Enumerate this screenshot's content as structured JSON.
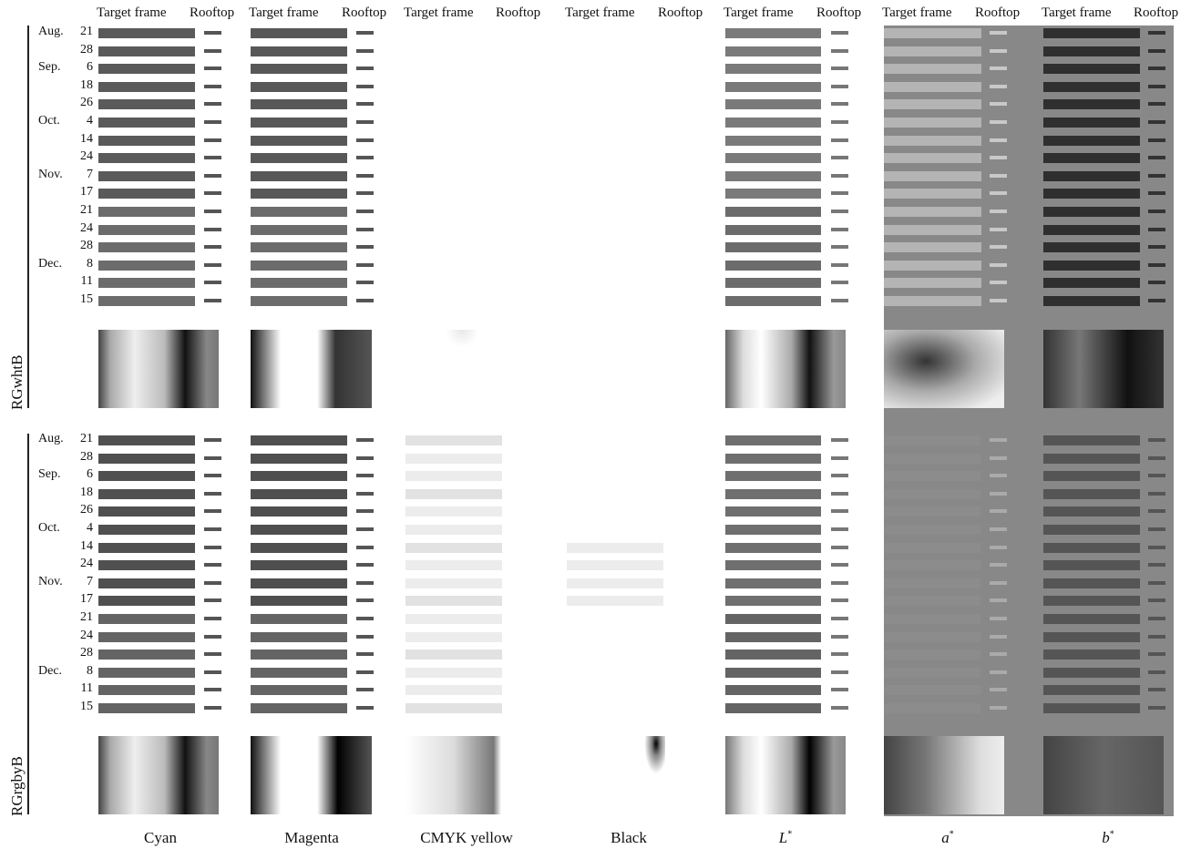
{
  "column_headers": {
    "target_frame": "Target frame",
    "rooftop": "Rooftop"
  },
  "row_labels": [
    "RGwhtB",
    "RGrgbyB"
  ],
  "months": [
    {
      "label": "Aug.",
      "row_index": 0
    },
    {
      "label": "Sep.",
      "row_index": 2
    },
    {
      "label": "Oct.",
      "row_index": 5
    },
    {
      "label": "Nov.",
      "row_index": 8
    },
    {
      "label": "Dec.",
      "row_index": 13
    }
  ],
  "dates": [
    "21",
    "28",
    "6",
    "18",
    "26",
    "4",
    "14",
    "24",
    "7",
    "17",
    "21",
    "24",
    "28",
    "8",
    "11",
    "15"
  ],
  "channels": [
    {
      "name": "Cyan",
      "italic": false,
      "sup": ""
    },
    {
      "name": "Magenta",
      "italic": false,
      "sup": ""
    },
    {
      "name": "CMYK yellow",
      "italic": false,
      "sup": ""
    },
    {
      "name": "Black",
      "italic": false,
      "sup": ""
    },
    {
      "name": "L",
      "italic": true,
      "sup": "*"
    },
    {
      "name": "a",
      "italic": true,
      "sup": "*"
    },
    {
      "name": "b",
      "italic": true,
      "sup": "*"
    }
  ],
  "colors": {
    "page_background": "#ffffff",
    "lab_panel_background": "#888888",
    "text": "#111111"
  }
}
